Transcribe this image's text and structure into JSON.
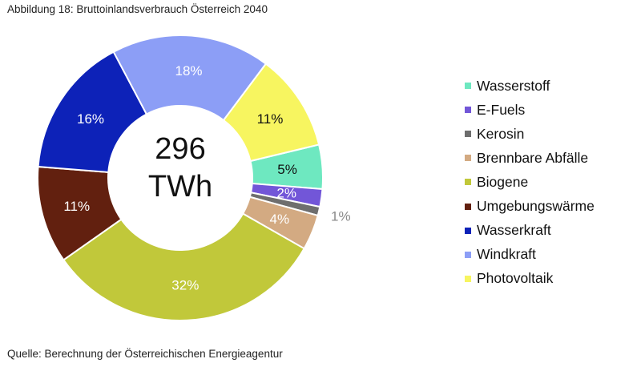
{
  "caption": "Abbildung 18: Bruttoinlandsverbrauch Österreich 2040",
  "source": "Quelle: Berechnung der Österreichischen Energieagentur",
  "chart_data": {
    "type": "pie",
    "variant": "donut",
    "title": "",
    "center_label": [
      "296",
      "TWh"
    ],
    "total": 296,
    "unit": "TWh",
    "legend_position": "right",
    "slices": [
      {
        "name": "Wasserstoff",
        "value": 5,
        "label": "5%",
        "color": "#6ee8c0",
        "label_color": "#111111"
      },
      {
        "name": "E-Fuels",
        "value": 2,
        "label": "2%",
        "color": "#7256d8",
        "label_color": "#ffffff"
      },
      {
        "name": "Kerosin",
        "value": 1,
        "label": "1%",
        "color": "#6e6e6e",
        "label_color": "#8a8a8a",
        "label_outside": true
      },
      {
        "name": "Brennbare Abfälle",
        "value": 4,
        "label": "4%",
        "color": "#d3aa82",
        "label_color": "#ffffff"
      },
      {
        "name": "Biogene",
        "value": 32,
        "label": "32%",
        "color": "#c1c83a",
        "label_color": "#ffffff"
      },
      {
        "name": "Umgebungswärme",
        "value": 11,
        "label": "11%",
        "color": "#62200f",
        "label_color": "#ffffff"
      },
      {
        "name": "Wasserkraft",
        "value": 16,
        "label": "16%",
        "color": "#0d22b8",
        "label_color": "#ffffff"
      },
      {
        "name": "Windkraft",
        "value": 18,
        "label": "18%",
        "color": "#8c9ef6",
        "label_color": "#ffffff"
      },
      {
        "name": "Photovoltaik",
        "value": 11,
        "label": "11%",
        "color": "#f7f560",
        "label_color": "#111111"
      }
    ]
  }
}
